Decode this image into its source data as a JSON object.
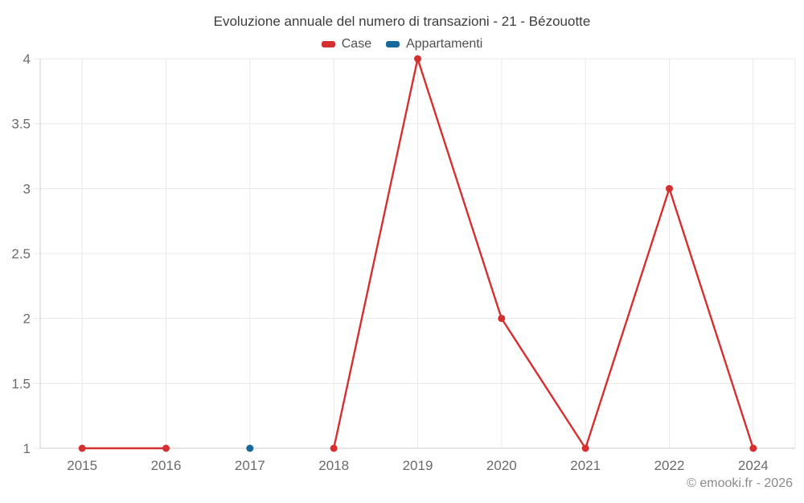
{
  "title": "Evoluzione annuale del numero di transazioni - 21 - Bézouotte",
  "watermark": "© emooki.fr - 2026",
  "colors": {
    "grid": "#e8e8e8",
    "axis": "#cccccc",
    "tick_text": "#6b6b6b",
    "title_text": "#3d3d3d",
    "legend_text": "#4f4f4f",
    "watermark_text": "#8a8a8a"
  },
  "chart_data": {
    "type": "line",
    "title": "Evoluzione annuale del numero di transazioni - 21 - Bézouotte",
    "categories": [
      "2015",
      "2016",
      "2017",
      "2018",
      "2019",
      "2020",
      "2021",
      "2022",
      "2024"
    ],
    "series": [
      {
        "name": "Case",
        "color": "#d62f2f",
        "values": [
          1,
          1,
          null,
          1,
          4,
          2,
          1,
          3,
          1
        ]
      },
      {
        "name": "Appartamenti",
        "color": "#17689b",
        "values": [
          null,
          null,
          1,
          null,
          null,
          null,
          null,
          null,
          null
        ]
      }
    ],
    "y_ticks": [
      1,
      1.5,
      2,
      2.5,
      3,
      3.5,
      4
    ],
    "ylim": [
      1,
      4
    ],
    "xlabel": "",
    "ylabel": "",
    "grid": true,
    "legend_position": "top"
  }
}
